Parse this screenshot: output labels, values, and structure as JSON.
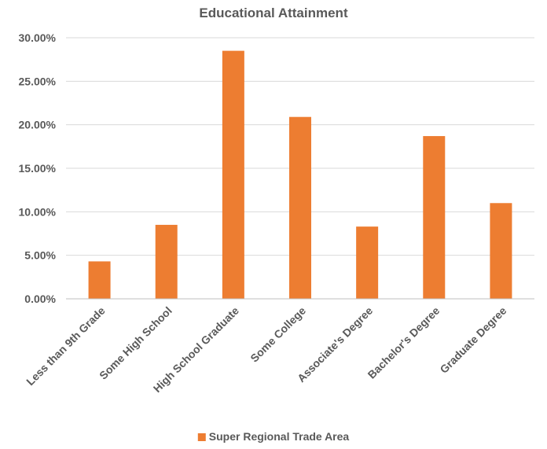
{
  "chart_data": {
    "type": "bar",
    "title": "Educational Attainment",
    "xlabel": "",
    "ylabel": "",
    "categories": [
      "Less than 9th Grade",
      "Some High School",
      "High School Graduate",
      "Some College",
      "Associate's Degree",
      "Bachelor's Degree",
      "Graduate Degree"
    ],
    "series": [
      {
        "name": "Super Regional Trade Area",
        "color": "#ED7D31",
        "values": [
          4.3,
          8.5,
          28.5,
          20.9,
          8.3,
          18.7,
          11.0
        ]
      }
    ],
    "ylim": [
      0,
      30
    ],
    "yticks": [
      "0.00%",
      "5.00%",
      "10.00%",
      "15.00%",
      "20.00%",
      "25.00%",
      "30.00%"
    ],
    "ytick_values": [
      0,
      5,
      10,
      15,
      20,
      25,
      30
    ],
    "grid": true,
    "gridline_color": "#D9D9D9",
    "legend_position": "bottom"
  }
}
